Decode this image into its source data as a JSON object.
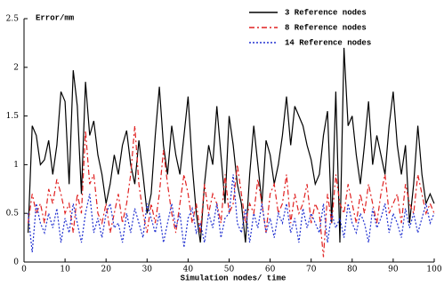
{
  "chart_data": {
    "type": "line",
    "y_label": "Error/mm",
    "x_label": "Simulation nodes/ time",
    "x": [
      1,
      2,
      3,
      4,
      5,
      6,
      7,
      8,
      9,
      10,
      11,
      12,
      13,
      14,
      15,
      16,
      17,
      18,
      19,
      20,
      21,
      22,
      23,
      24,
      25,
      26,
      27,
      28,
      29,
      30,
      31,
      32,
      33,
      34,
      35,
      36,
      37,
      38,
      39,
      40,
      41,
      42,
      43,
      44,
      45,
      46,
      47,
      48,
      49,
      50,
      51,
      52,
      53,
      54,
      55,
      56,
      57,
      58,
      59,
      60,
      61,
      62,
      63,
      64,
      65,
      66,
      67,
      68,
      69,
      70,
      71,
      72,
      73,
      74,
      75,
      76,
      77,
      78,
      79,
      80,
      81,
      82,
      83,
      84,
      85,
      86,
      87,
      88,
      89,
      90,
      91,
      92,
      93,
      94,
      95,
      96,
      97,
      98,
      99,
      100
    ],
    "series": [
      {
        "name": "3 Reference nodes",
        "color": "#000000",
        "dash": "none",
        "values": [
          0.3,
          1.4,
          1.3,
          1.0,
          1.05,
          1.25,
          0.9,
          1.2,
          1.75,
          1.65,
          0.8,
          1.97,
          1.6,
          0.7,
          1.85,
          1.3,
          1.45,
          1.1,
          0.9,
          0.6,
          0.8,
          1.1,
          0.9,
          1.2,
          1.35,
          1.0,
          0.8,
          1.25,
          0.9,
          0.5,
          0.7,
          1.3,
          1.8,
          1.2,
          0.9,
          1.4,
          1.1,
          0.9,
          1.3,
          1.7,
          1.0,
          0.5,
          0.2,
          0.8,
          1.2,
          1.0,
          1.6,
          1.1,
          0.6,
          1.5,
          1.2,
          0.8,
          0.6,
          0.2,
          0.9,
          1.4,
          1.0,
          0.6,
          1.25,
          1.1,
          0.8,
          1.0,
          1.3,
          1.7,
          1.2,
          1.6,
          1.5,
          1.4,
          1.2,
          1.05,
          0.8,
          0.9,
          1.3,
          1.55,
          0.4,
          1.75,
          0.2,
          2.2,
          1.4,
          1.5,
          1.1,
          0.8,
          1.2,
          1.65,
          1.0,
          1.3,
          1.1,
          0.9,
          1.4,
          1.75,
          1.2,
          0.9,
          1.2,
          0.4,
          0.8,
          1.4,
          0.9,
          0.6,
          0.7,
          0.6
        ]
      },
      {
        "name": "8 Reference nodes",
        "color": "#e02020",
        "dash": "6,3,2,3",
        "values": [
          0.4,
          0.7,
          0.5,
          0.6,
          0.4,
          0.75,
          0.6,
          0.85,
          0.7,
          0.5,
          0.6,
          0.3,
          0.7,
          0.5,
          1.35,
          0.8,
          0.9,
          0.5,
          0.4,
          0.6,
          0.3,
          0.5,
          0.7,
          0.4,
          0.6,
          0.9,
          1.4,
          0.8,
          0.5,
          0.3,
          0.6,
          0.4,
          0.7,
          1.15,
          0.8,
          0.5,
          0.3,
          0.6,
          0.9,
          0.7,
          0.4,
          0.6,
          0.3,
          0.8,
          0.5,
          0.7,
          0.6,
          0.4,
          0.9,
          0.5,
          0.6,
          1.0,
          0.7,
          0.4,
          0.6,
          0.5,
          0.85,
          0.6,
          0.3,
          0.7,
          0.8,
          0.5,
          0.6,
          0.9,
          0.4,
          0.7,
          0.5,
          0.6,
          0.8,
          0.4,
          0.6,
          0.5,
          0.05,
          0.7,
          0.4,
          0.9,
          0.6,
          0.5,
          0.8,
          0.6,
          0.4,
          0.7,
          0.5,
          0.8,
          0.6,
          0.4,
          0.7,
          0.9,
          0.5,
          0.6,
          0.7,
          0.4,
          0.8,
          0.6,
          0.5,
          0.9,
          0.7,
          0.5,
          0.6,
          0.5
        ]
      },
      {
        "name": "14 Reference nodes",
        "color": "#2030d0",
        "dash": "2,2",
        "values": [
          0.5,
          0.1,
          0.6,
          0.4,
          0.3,
          0.5,
          0.35,
          0.55,
          0.2,
          0.45,
          0.3,
          0.6,
          0.4,
          0.2,
          0.5,
          0.7,
          0.3,
          0.45,
          0.25,
          0.5,
          0.6,
          0.35,
          0.4,
          0.2,
          0.5,
          0.3,
          0.55,
          0.4,
          0.25,
          0.6,
          0.45,
          0.3,
          0.5,
          0.2,
          0.4,
          0.6,
          0.35,
          0.5,
          0.15,
          0.45,
          0.55,
          0.3,
          0.4,
          0.2,
          0.5,
          0.35,
          0.6,
          0.25,
          0.45,
          0.5,
          0.9,
          0.4,
          0.3,
          0.55,
          0.2,
          0.5,
          0.35,
          0.6,
          0.3,
          0.45,
          0.25,
          0.5,
          0.4,
          0.6,
          0.3,
          0.45,
          0.2,
          0.55,
          0.35,
          0.5,
          0.4,
          0.3,
          0.6,
          0.2,
          0.5,
          0.35,
          0.45,
          0.25,
          0.6,
          0.4,
          0.3,
          0.5,
          0.4,
          0.2,
          0.55,
          0.35,
          0.45,
          0.6,
          0.3,
          0.5,
          0.4,
          0.25,
          0.55,
          0.35,
          0.5,
          0.3,
          0.45,
          0.6,
          0.4,
          0.5
        ]
      }
    ],
    "xlim": [
      0,
      100
    ],
    "xticks": [
      0,
      10,
      20,
      30,
      40,
      50,
      60,
      70,
      80,
      90,
      100
    ],
    "ylim": [
      0,
      2.5
    ],
    "yticks": [
      0,
      0.5,
      1,
      1.5,
      2,
      2.5
    ]
  }
}
